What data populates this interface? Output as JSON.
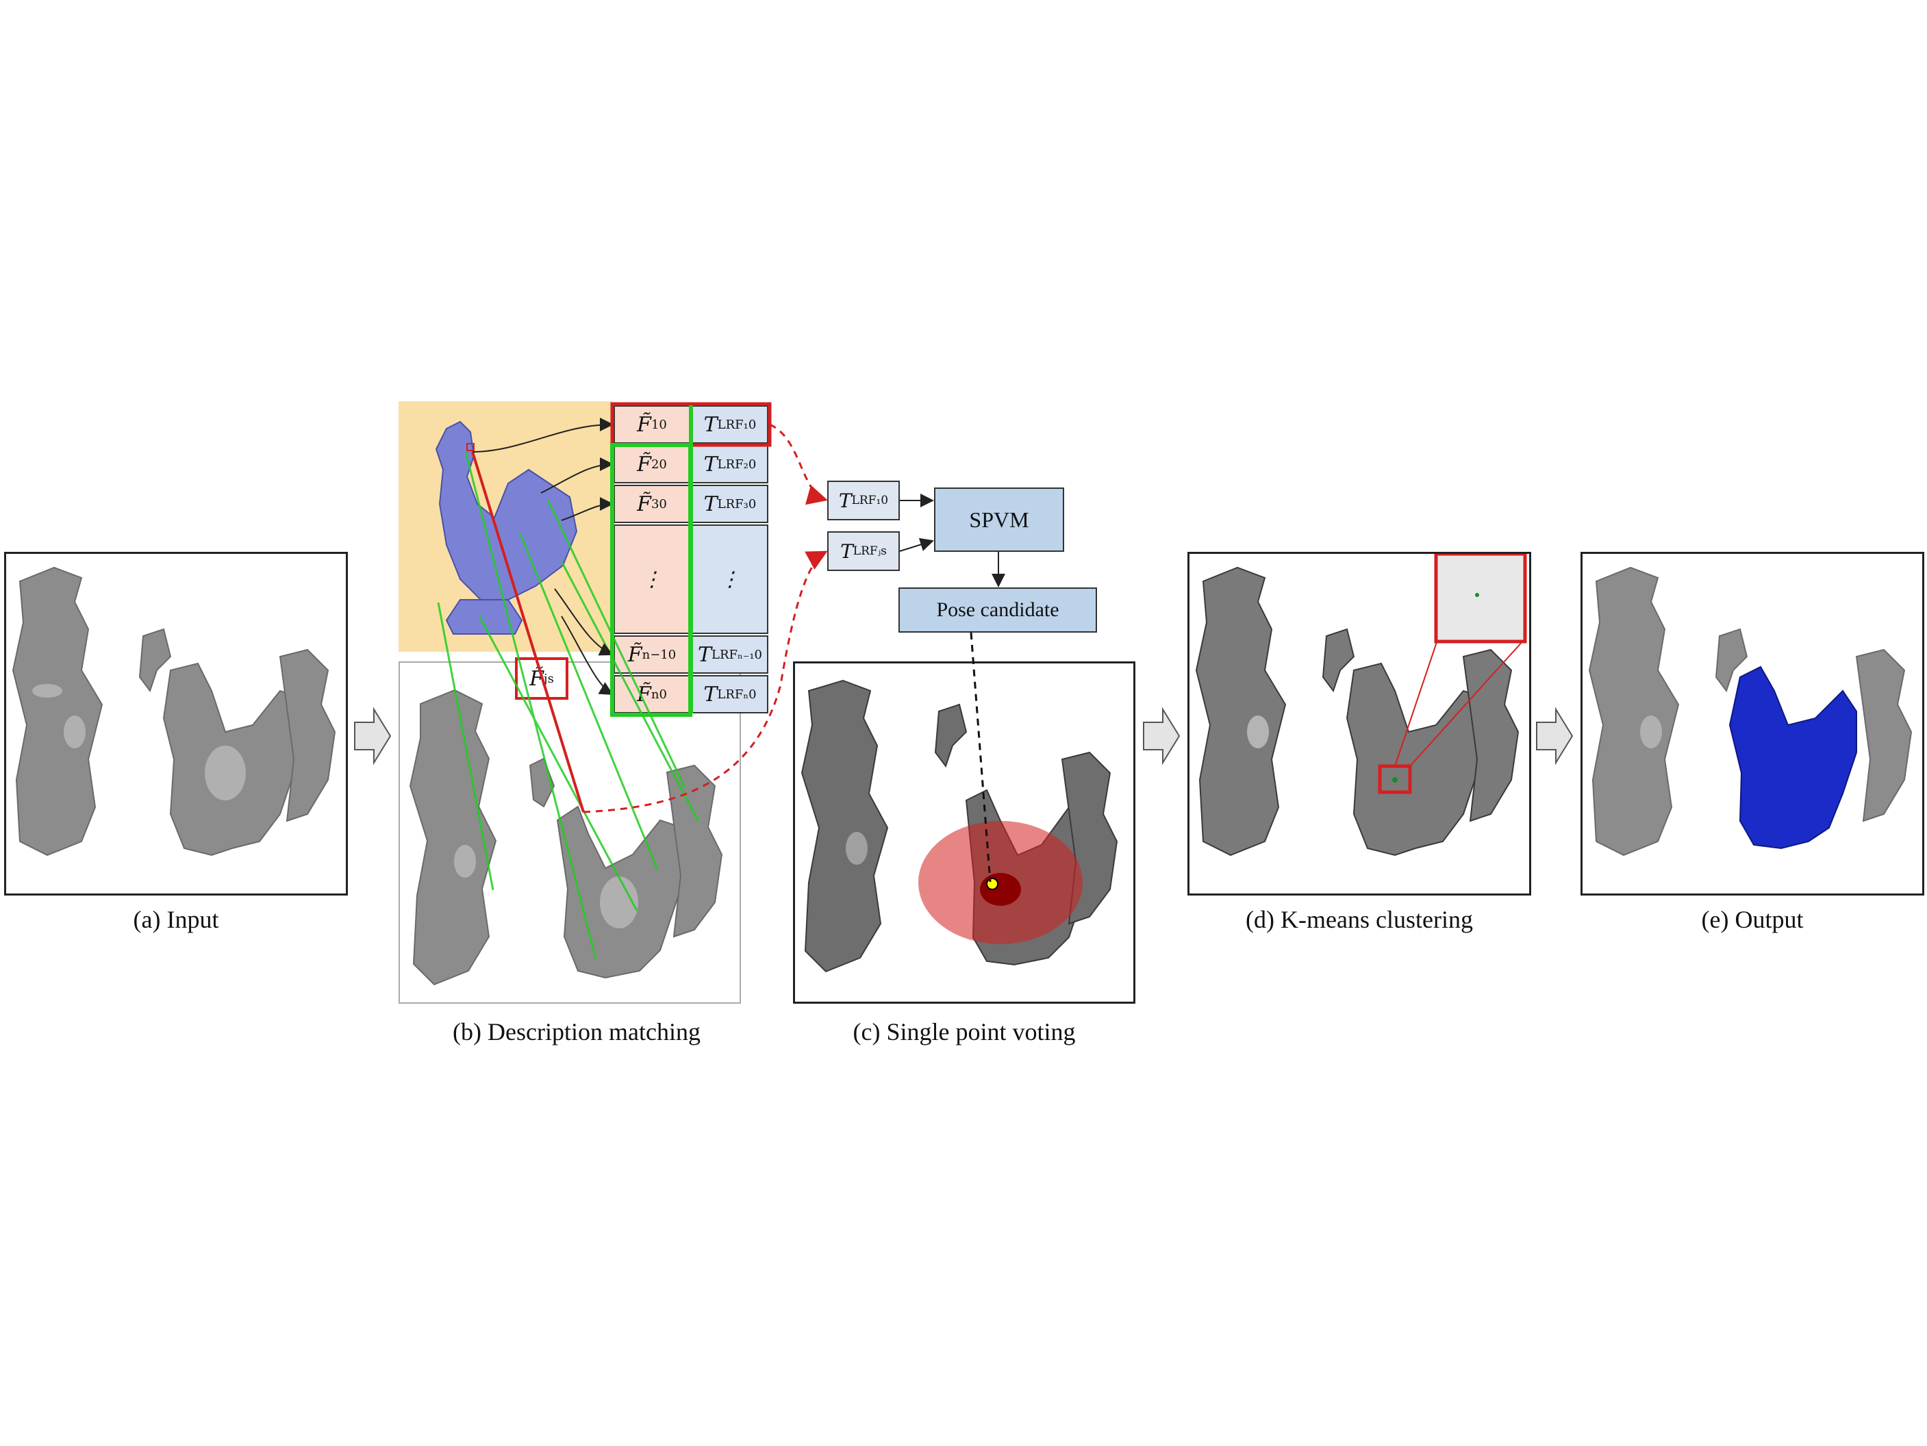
{
  "captions": {
    "a": "(a) Input",
    "b": "(b) Description matching",
    "c": "(c) Single point voting",
    "d": "(d) K-means clustering",
    "e": "(e) Output"
  },
  "table": {
    "f_rows": [
      {
        "base": "F̃",
        "sub": "1",
        "sup": "0"
      },
      {
        "base": "F̃",
        "sub": "2",
        "sup": "0"
      },
      {
        "base": "F̃",
        "sub": "3",
        "sup": "0"
      },
      {
        "base": "⋮",
        "sub": "",
        "sup": ""
      },
      {
        "base": "F̃",
        "sub": "n−1",
        "sup": "0"
      },
      {
        "base": "F̃",
        "sub": "n",
        "sup": "0"
      }
    ],
    "t_rows": [
      {
        "base": "T",
        "sub": "LRF₁",
        "sup": "0"
      },
      {
        "base": "T",
        "sub": "LRF₂",
        "sup": "0"
      },
      {
        "base": "T",
        "sub": "LRF₃",
        "sup": "0"
      },
      {
        "base": "⋮",
        "sub": "",
        "sup": ""
      },
      {
        "base": "T",
        "sub": "LRFₙ₋₁",
        "sup": "0"
      },
      {
        "base": "T",
        "sub": "LRFₙ",
        "sup": "0"
      }
    ]
  },
  "scene_feature": {
    "base": "F̃",
    "sub": "j",
    "sup": "s"
  },
  "spvm_inputs": [
    {
      "base": "T",
      "sub": "LRF₁",
      "sup": "0"
    },
    {
      "base": "T",
      "sub": "LRFⱼ",
      "sup": "s"
    }
  ],
  "boxes": {
    "spvm": "SPVM",
    "pose": "Pose candidate"
  },
  "colors": {
    "model_bg": "#f9dfa6",
    "model_mesh": "#7b82d6",
    "highlight_red": "#d42020",
    "match_green": "#22cc22",
    "output_blue": "#1a2bc8",
    "scene_gray": "#8c8c8c"
  }
}
